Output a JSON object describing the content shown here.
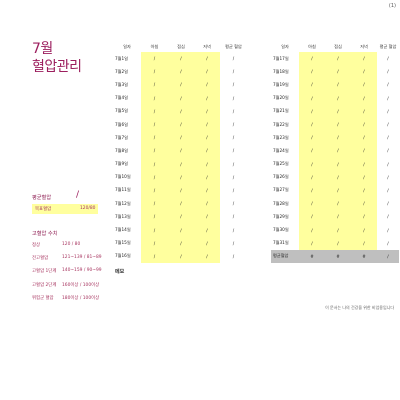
{
  "page_number": "(1)",
  "title": {
    "month": "7월",
    "name": "혈압관리"
  },
  "summary": {
    "avg_label": "평균혈압",
    "avg_value": "/",
    "target_label": "목표혈압",
    "target_value": "120/80"
  },
  "hypertension": {
    "heading": "고혈압 수치",
    "rows": [
      {
        "label": "정상",
        "value": "120 / 80"
      },
      {
        "label": "전고혈압",
        "value": "121~139 / 81~89"
      },
      {
        "label": "고혈압 1단계",
        "value": "140~159 / 90~99"
      },
      {
        "label": "고혈압 2단계",
        "value": "160이상 / 100이상"
      },
      {
        "label": "위험군 혈압",
        "value": "180이상 / 100이상"
      }
    ]
  },
  "columns": [
    "일자",
    "아침",
    "점심",
    "저녁",
    "평균 혈압",
    "일자",
    "아침",
    "점심",
    "저녁",
    "평균 혈압"
  ],
  "left_rows": [
    {
      "date": "7월1일",
      "vals": [
        "/",
        "/",
        "/",
        "/"
      ]
    },
    {
      "date": "7월2일",
      "vals": [
        "/",
        "/",
        "/",
        "/"
      ]
    },
    {
      "date": "7월3일",
      "vals": [
        "/",
        "/",
        "/",
        "/"
      ]
    },
    {
      "date": "7월4일",
      "vals": [
        "/",
        "/",
        "/",
        "/"
      ]
    },
    {
      "date": "7월5일",
      "vals": [
        "/",
        "/",
        "/",
        "/"
      ]
    },
    {
      "date": "7월6일",
      "vals": [
        "/",
        "/",
        "/",
        "/"
      ]
    },
    {
      "date": "7월7일",
      "vals": [
        "/",
        "/",
        "/",
        "/"
      ]
    },
    {
      "date": "7월8일",
      "vals": [
        "/",
        "/",
        "/",
        "/"
      ]
    },
    {
      "date": "7월9일",
      "vals": [
        "/",
        "/",
        "/",
        "/"
      ]
    },
    {
      "date": "7월10일",
      "vals": [
        "/",
        "/",
        "/",
        "/"
      ]
    },
    {
      "date": "7월11일",
      "vals": [
        "/",
        "/",
        "/",
        "/"
      ]
    },
    {
      "date": "7월12일",
      "vals": [
        "/",
        "/",
        "/",
        "/"
      ]
    },
    {
      "date": "7월13일",
      "vals": [
        "/",
        "/",
        "/",
        "/"
      ]
    },
    {
      "date": "7월14일",
      "vals": [
        "/",
        "/",
        "/",
        "/"
      ]
    },
    {
      "date": "7월15일",
      "vals": [
        "/",
        "/",
        "/",
        "/"
      ]
    },
    {
      "date": "7월16일",
      "vals": [
        "/",
        "/",
        "/",
        "/"
      ]
    }
  ],
  "right_rows": [
    {
      "date": "7월17일",
      "vals": [
        "/",
        "/",
        "/",
        "/"
      ]
    },
    {
      "date": "7월18일",
      "vals": [
        "/",
        "/",
        "/",
        "/"
      ]
    },
    {
      "date": "7월19일",
      "vals": [
        "/",
        "/",
        "/",
        "/"
      ]
    },
    {
      "date": "7월20일",
      "vals": [
        "/",
        "/",
        "/",
        "/"
      ]
    },
    {
      "date": "7월21일",
      "vals": [
        "/",
        "/",
        "/",
        "/"
      ]
    },
    {
      "date": "7월22일",
      "vals": [
        "/",
        "/",
        "/",
        "/"
      ]
    },
    {
      "date": "7월23일",
      "vals": [
        "/",
        "/",
        "/",
        "/"
      ]
    },
    {
      "date": "7월24일",
      "vals": [
        "/",
        "/",
        "/",
        "/"
      ]
    },
    {
      "date": "7월25일",
      "vals": [
        "/",
        "/",
        "/",
        "/"
      ]
    },
    {
      "date": "7월26일",
      "vals": [
        "/",
        "/",
        "/",
        "/"
      ]
    },
    {
      "date": "7월27일",
      "vals": [
        "/",
        "/",
        "/",
        "/"
      ]
    },
    {
      "date": "7월28일",
      "vals": [
        "/",
        "/",
        "/",
        "/"
      ]
    },
    {
      "date": "7월29일",
      "vals": [
        "/",
        "/",
        "/",
        "/"
      ]
    },
    {
      "date": "7월30일",
      "vals": [
        "/",
        "/",
        "/",
        "/"
      ]
    },
    {
      "date": "7월31일",
      "vals": [
        "/",
        "/",
        "/",
        "/"
      ]
    }
  ],
  "right_avg": {
    "label": "평균혈압",
    "vals": [
      "#",
      "#",
      "#",
      "/"
    ]
  },
  "memo_label": "메모",
  "footnote": "이 문서는 나의 건강을 위한 비업용입니다",
  "colors": {
    "accent": "#9c1f5e",
    "highlight": "#ffff9e",
    "avg_row": "#bfbfbf"
  }
}
